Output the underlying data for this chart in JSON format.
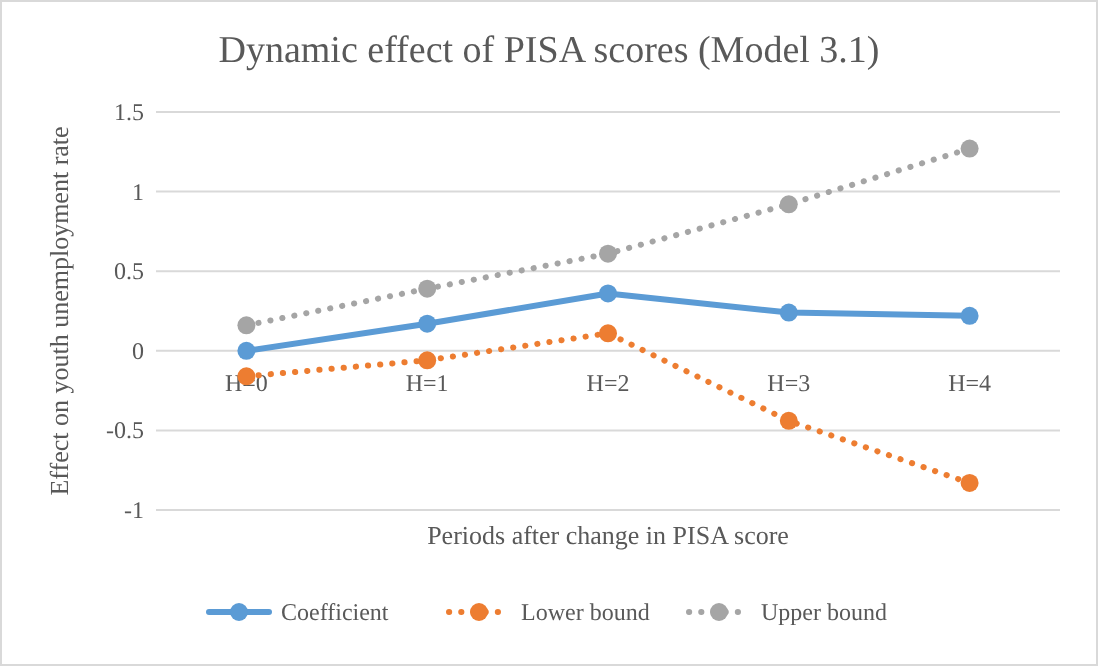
{
  "chart_data": {
    "type": "line",
    "title": "Dynamic effect of PISA scores (Model 3.1)",
    "xlabel": "Periods after change in PISA score",
    "ylabel": "Effect on youth unemployment rate",
    "categories": [
      "H=0",
      "H=1",
      "H=2",
      "H=3",
      "H=4"
    ],
    "ylim": [
      -1,
      1.5
    ],
    "yticks": [
      -1,
      -0.5,
      0,
      0.5,
      1,
      1.5
    ],
    "grid": "y",
    "legend": "bottom",
    "marker": "circle",
    "series": [
      {
        "name": "Coefficient",
        "color": "#5b9bd5",
        "line_style": "solid",
        "values": [
          0,
          0.17,
          0.36,
          0.24,
          0.22
        ]
      },
      {
        "name": "Lower bound",
        "color": "#ed7d31",
        "line_style": "dotted",
        "values": [
          -0.16,
          -0.06,
          0.11,
          -0.44,
          -0.83
        ]
      },
      {
        "name": "Upper bound",
        "color": "#a5a5a5",
        "line_style": "dotted",
        "values": [
          0.16,
          0.39,
          0.61,
          0.92,
          1.27
        ]
      }
    ]
  }
}
